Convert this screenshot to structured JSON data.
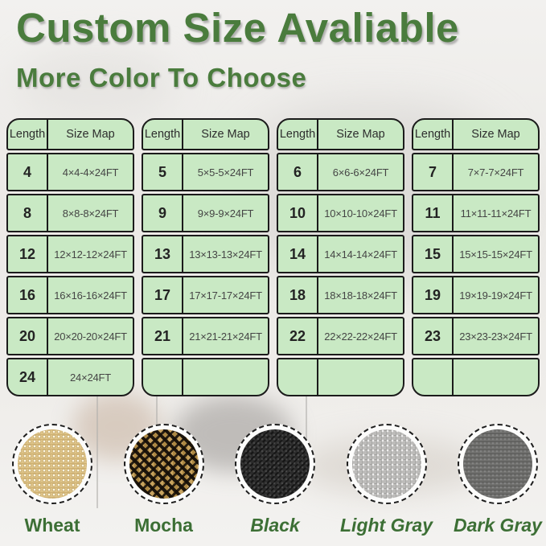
{
  "header": {
    "title": "Custom Size Avaliable",
    "subtitle": "More Color To Choose"
  },
  "tables": [
    {
      "headers": [
        "Length",
        "Size Map"
      ],
      "rows": [
        [
          "4",
          "4×4-4×24FT"
        ],
        [
          "8",
          "8×8-8×24FT"
        ],
        [
          "12",
          "12×12-12×24FT"
        ],
        [
          "16",
          "16×16-16×24FT"
        ],
        [
          "20",
          "20×20-20×24FT"
        ],
        [
          "24",
          "24×24FT"
        ]
      ]
    },
    {
      "headers": [
        "Length",
        "Size Map"
      ],
      "rows": [
        [
          "5",
          "5×5-5×24FT"
        ],
        [
          "9",
          "9×9-9×24FT"
        ],
        [
          "13",
          "13×13-13×24FT"
        ],
        [
          "17",
          "17×17-17×24FT"
        ],
        [
          "21",
          "21×21-21×24FT"
        ],
        [
          "",
          ""
        ]
      ]
    },
    {
      "headers": [
        "Length",
        "Size Map"
      ],
      "rows": [
        [
          "6",
          "6×6-6×24FT"
        ],
        [
          "10",
          "10×10-10×24FT"
        ],
        [
          "14",
          "14×14-14×24FT"
        ],
        [
          "18",
          "18×18-18×24FT"
        ],
        [
          "22",
          "22×22-22×24FT"
        ],
        [
          "",
          ""
        ]
      ]
    },
    {
      "headers": [
        "Length",
        "Size Map"
      ],
      "rows": [
        [
          "7",
          "7×7-7×24FT"
        ],
        [
          "11",
          "11×11-11×24FT"
        ],
        [
          "15",
          "15×15-15×24FT"
        ],
        [
          "19",
          "19×19-19×24FT"
        ],
        [
          "23",
          "23×23-23×24FT"
        ],
        [
          "",
          ""
        ]
      ]
    }
  ],
  "swatches": [
    {
      "name": "Wheat",
      "style": "wheat",
      "italic": false
    },
    {
      "name": "Mocha",
      "style": "mocha",
      "italic": false
    },
    {
      "name": "Black",
      "style": "black",
      "italic": true
    },
    {
      "name": "Light Gray",
      "style": "lightgray",
      "italic": true
    },
    {
      "name": "Dark Gray",
      "style": "darkgray",
      "italic": true
    }
  ],
  "palette": {
    "title_green": "#4a7c3d",
    "label_green": "#3c6f35",
    "cell_green": "#c9e9c4",
    "table_border": "#1b1b1b",
    "wheat": "#dec489",
    "mocha_tan": "#c7a360",
    "mocha_black": "#1b150f",
    "black": "#2b2b2b",
    "light_gray": "#bcbbb9",
    "dark_gray": "#6e6e6c"
  }
}
